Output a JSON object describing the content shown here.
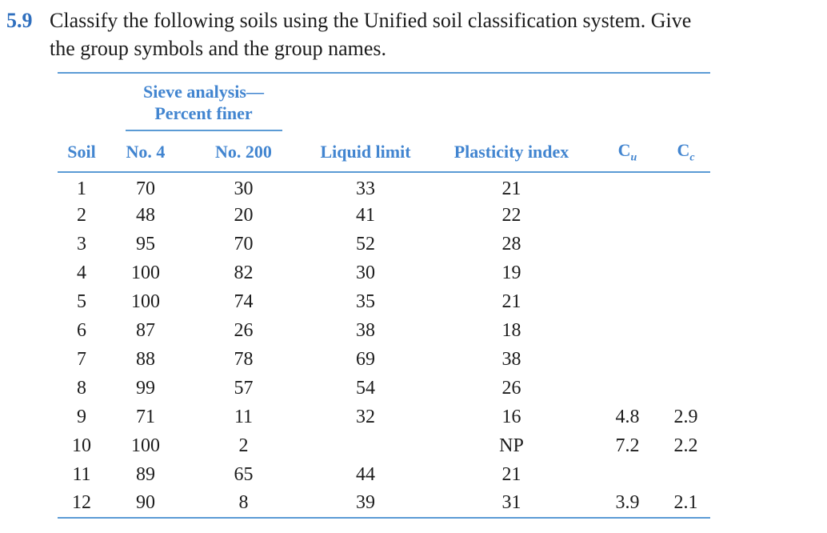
{
  "colors": {
    "accent": "#4285d0",
    "rule": "#5b9bd5",
    "num-blue": "#2f6fbe"
  },
  "problem": {
    "number": "5.9",
    "text_line1": "Classify the following soils using the Unified soil classification system. Give",
    "text_line2": "the group symbols and the group names."
  },
  "table": {
    "span_header": [
      "Sieve analysis—",
      "Percent finer"
    ],
    "columns": [
      "Soil",
      "No. 4",
      "No. 200",
      "Liquid limit",
      "Plasticity index"
    ],
    "cu": {
      "base": "C",
      "sub": "u"
    },
    "cc": {
      "base": "C",
      "sub": "c"
    },
    "rows": [
      {
        "soil": "1",
        "no4": "70",
        "no200": "30",
        "ll": "33",
        "pi": "21",
        "cu": "",
        "cc": ""
      },
      {
        "soil": "2",
        "no4": "48",
        "no200": "20",
        "ll": "41",
        "pi": "22",
        "cu": "",
        "cc": ""
      },
      {
        "soil": "3",
        "no4": "95",
        "no200": "70",
        "ll": "52",
        "pi": "28",
        "cu": "",
        "cc": ""
      },
      {
        "soil": "4",
        "no4": "100",
        "no200": "82",
        "ll": "30",
        "pi": "19",
        "cu": "",
        "cc": ""
      },
      {
        "soil": "5",
        "no4": "100",
        "no200": "74",
        "ll": "35",
        "pi": "21",
        "cu": "",
        "cc": ""
      },
      {
        "soil": "6",
        "no4": "87",
        "no200": "26",
        "ll": "38",
        "pi": "18",
        "cu": "",
        "cc": ""
      },
      {
        "soil": "7",
        "no4": "88",
        "no200": "78",
        "ll": "69",
        "pi": "38",
        "cu": "",
        "cc": ""
      },
      {
        "soil": "8",
        "no4": "99",
        "no200": "57",
        "ll": "54",
        "pi": "26",
        "cu": "",
        "cc": ""
      },
      {
        "soil": "9",
        "no4": "71",
        "no200": "11",
        "ll": "32",
        "pi": "16",
        "cu": "4.8",
        "cc": "2.9"
      },
      {
        "soil": "10",
        "no4": "100",
        "no200": "2",
        "ll": "",
        "pi": "NP",
        "cu": "7.2",
        "cc": "2.2"
      },
      {
        "soil": "11",
        "no4": "89",
        "no200": "65",
        "ll": "44",
        "pi": "21",
        "cu": "",
        "cc": ""
      },
      {
        "soil": "12",
        "no4": "90",
        "no200": "8",
        "ll": "39",
        "pi": "31",
        "cu": "3.9",
        "cc": "2.1"
      }
    ]
  }
}
